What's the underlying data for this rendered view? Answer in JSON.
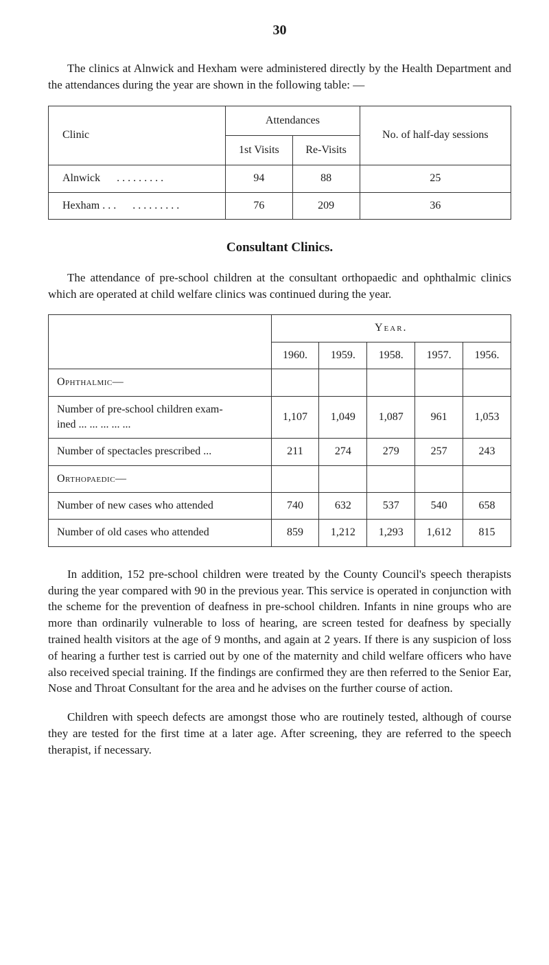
{
  "pageNumber": "30",
  "intro": "The clinics at Alnwick and Hexham were administered directly by the Health Department and the attendances during the year are shown in the following table: —",
  "clinicTable": {
    "headers": {
      "clinic": "Clinic",
      "attendances": "Attendances",
      "firstVisits": "1st Visits",
      "reVisits": "Re-Visits",
      "halfDay": "No. of half-day sessions"
    },
    "rows": [
      {
        "name": "Alnwick",
        "dots": ". . .   . . .   . . .",
        "first": "94",
        "re": "88",
        "half": "25"
      },
      {
        "name": "Hexham . . .",
        "dots": ". . .   . . .   . . .",
        "first": "76",
        "re": "209",
        "half": "36"
      }
    ]
  },
  "sectionHeading": "Consultant Clinics.",
  "consultantPara": "The attendance of pre-school children at the consultant orthopaedic and ophthalmic clinics which are operated at child welfare clinics was continued during the year.",
  "yearTable": {
    "yearLabel": "Year.",
    "years": [
      "1960.",
      "1959.",
      "1958.",
      "1957.",
      "1956."
    ],
    "sections": {
      "ophthalmic": "Ophthalmic—",
      "orthopaedic": "Orthopaedic—"
    },
    "rows": [
      {
        "label": "Number of pre-school children exam-\nined   ...   ...   ...   ...   ...",
        "vals": [
          "1,107",
          "1,049",
          "1,087",
          "961",
          "1,053"
        ]
      },
      {
        "label": "Number of spectacles prescribed   ...",
        "vals": [
          "211",
          "274",
          "279",
          "257",
          "243"
        ]
      },
      {
        "label": "Number of new cases who attended",
        "vals": [
          "740",
          "632",
          "537",
          "540",
          "658"
        ]
      },
      {
        "label": "Number of old cases who attended",
        "vals": [
          "859",
          "1,212",
          "1,293",
          "1,612",
          "815"
        ]
      }
    ]
  },
  "additionPara": "In addition, 152 pre-school children were treated by the County Council's speech therapists during the year compared with 90 in the previous year.   This service is operated in conjunction with the scheme for the prevention of deafness in pre-school children.  Infants in nine groups who are more than ordinarily vulnerable to loss of hearing, are screen tested for deafness by specially trained health visitors at the age of 9 months, and again at 2 years.   If there is any suspicion of loss of hearing a further test is carried out by one of the maternity and child welfare officers who have also received special training.   If the findings are confirmed they are then referred to the Senior Ear, Nose and Throat Consultant for the area and he advises on the further course of action.",
  "childrenPara": "Children with speech defects are amongst those who are routinely tested, although of course they are tested for the first time at a later age.   After screening, they are referred to the speech therapist, if necessary."
}
